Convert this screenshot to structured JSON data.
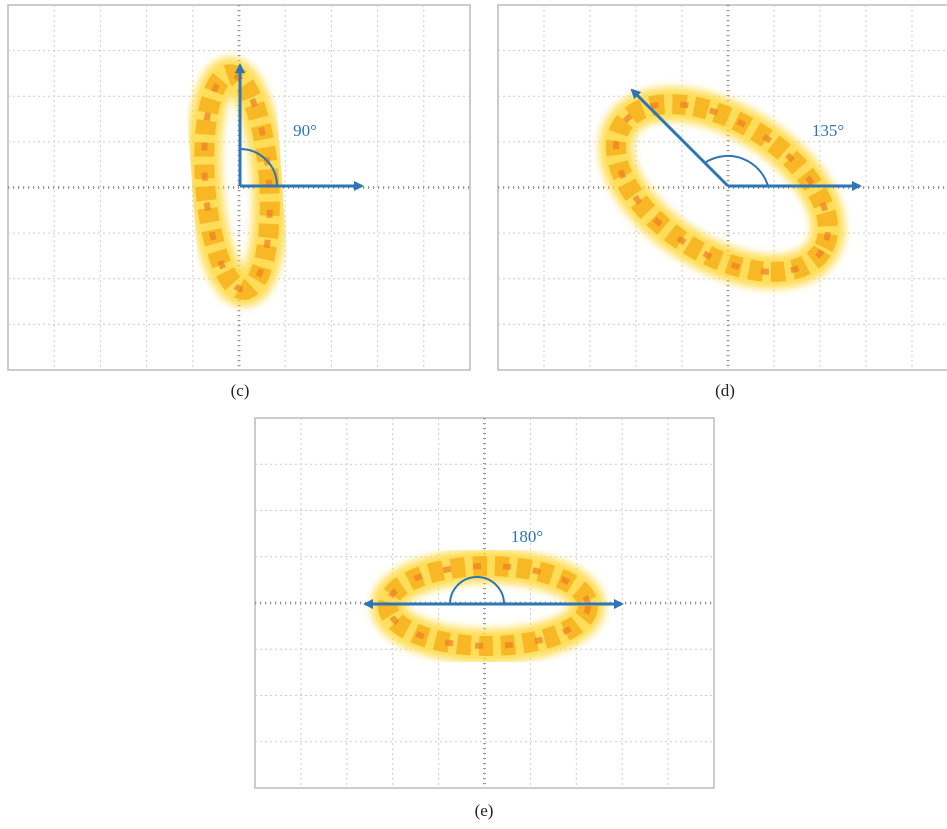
{
  "panels": [
    {
      "angle_label": "90°",
      "caption": "(c)"
    },
    {
      "angle_label": "135°",
      "caption": "(d)"
    },
    {
      "angle_label": "180°",
      "caption": "(e)"
    }
  ]
}
